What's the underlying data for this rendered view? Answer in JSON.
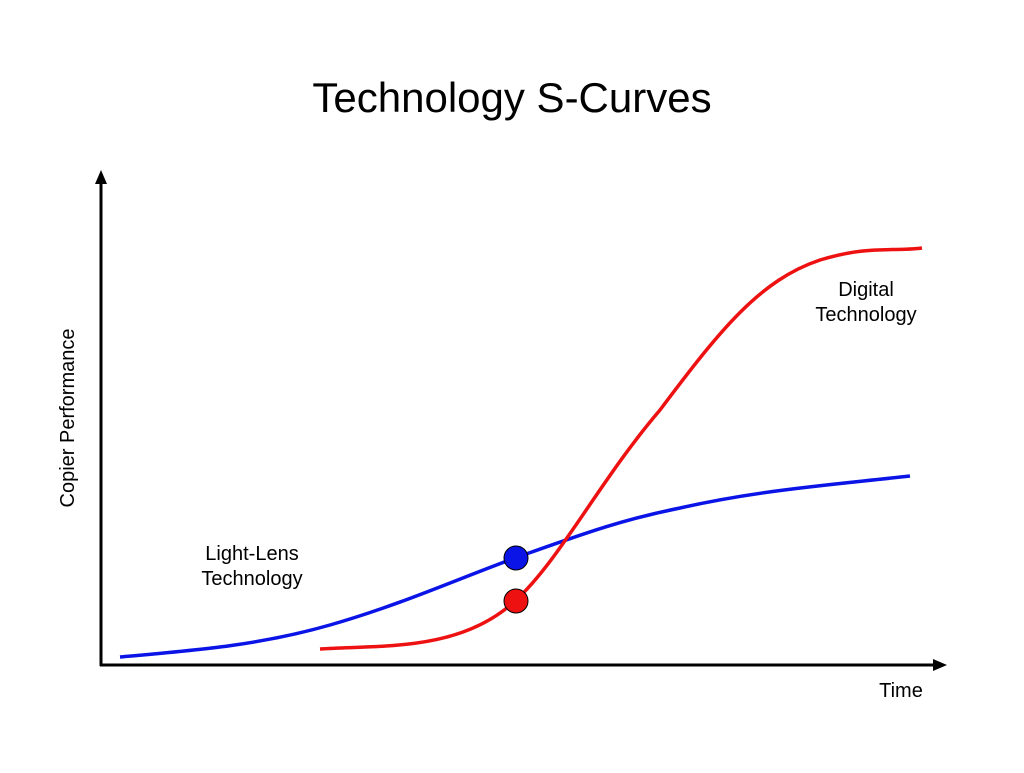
{
  "title": "Technology S-Curves",
  "y_axis_label": "Copier Performance",
  "x_axis_label": "Time",
  "curves": [
    {
      "label_lines": [
        "Light-Lens",
        "Technology"
      ]
    },
    {
      "label_lines": [
        "Digital",
        "Technology"
      ]
    }
  ]
}
